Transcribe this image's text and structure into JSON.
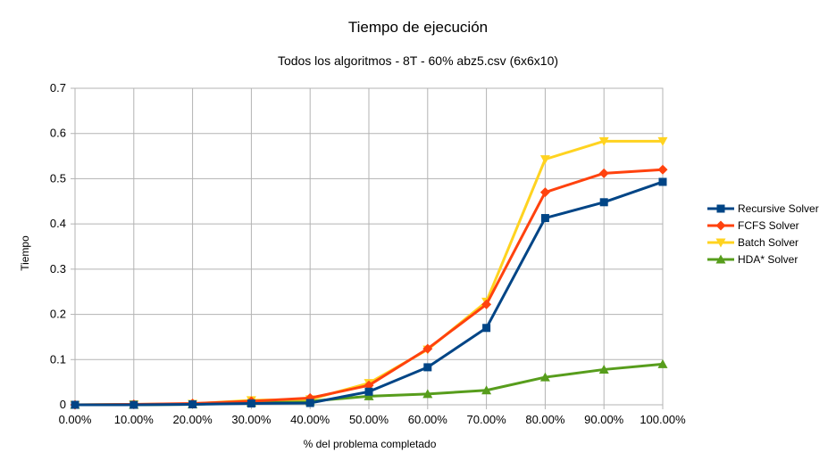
{
  "chart_data": {
    "type": "line",
    "title": "Tiempo de ejecución",
    "subtitle": "Todos los algoritmos - 8T - 60% abz5.csv (6x6x10)",
    "xlabel": "% del problema completado",
    "ylabel": "Tiempo",
    "categories": [
      "0.00%",
      "10.00%",
      "20.00%",
      "30.00%",
      "40.00%",
      "50.00%",
      "60.00%",
      "70.00%",
      "80.00%",
      "90.00%",
      "100.00%"
    ],
    "ylim": [
      0,
      0.7
    ],
    "yticks": [
      "0",
      "0.1",
      "0.2",
      "0.3",
      "0.4",
      "0.5",
      "0.6",
      "0.7"
    ],
    "grid": true,
    "legend_position": "right",
    "series": [
      {
        "name": "Recursive Solver",
        "color": "#004586",
        "marker": "square",
        "values": [
          0.0,
          0.0,
          0.001,
          0.003,
          0.004,
          0.029,
          0.083,
          0.17,
          0.413,
          0.448,
          0.493
        ]
      },
      {
        "name": "FCFS Solver",
        "color": "#ff420e",
        "marker": "diamond",
        "values": [
          0.0,
          0.001,
          0.003,
          0.008,
          0.015,
          0.043,
          0.124,
          0.222,
          0.47,
          0.512,
          0.52
        ]
      },
      {
        "name": "Batch Solver",
        "color": "#ffd320",
        "marker": "triangle-down",
        "values": [
          0.0,
          0.001,
          0.002,
          0.01,
          0.012,
          0.048,
          0.122,
          0.228,
          0.543,
          0.583,
          0.583
        ]
      },
      {
        "name": "HDA* Solver",
        "color": "#579d1c",
        "marker": "triangle-up",
        "values": [
          0.0,
          0.0,
          0.001,
          0.005,
          0.008,
          0.019,
          0.024,
          0.032,
          0.061,
          0.078,
          0.09
        ]
      }
    ]
  }
}
